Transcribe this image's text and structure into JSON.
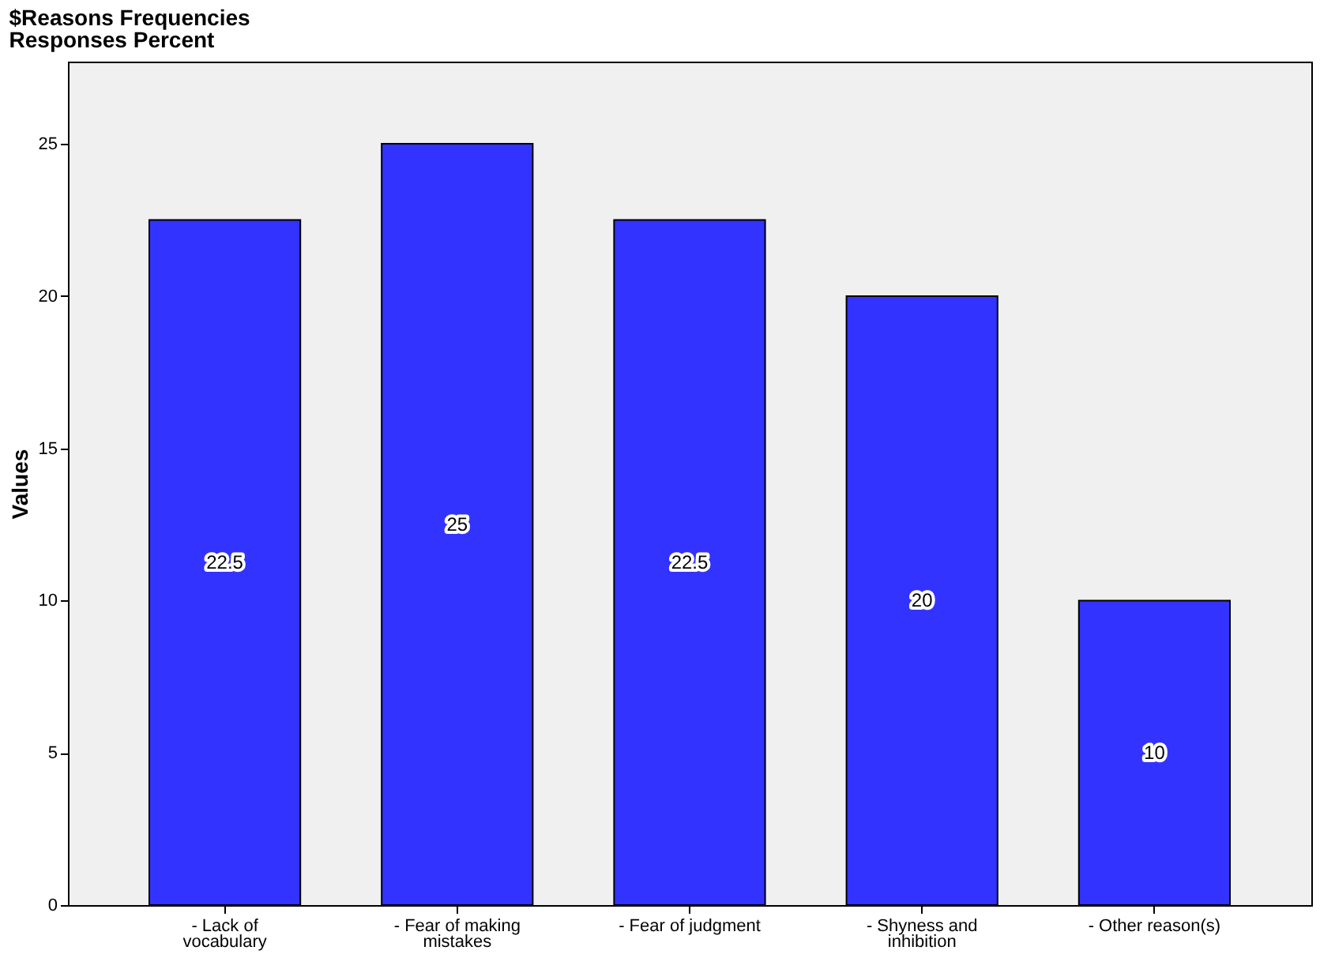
{
  "chart_data": {
    "type": "bar",
    "title": "$Reasons Frequencies",
    "subtitle": "Responses Percent",
    "ylabel": "Values",
    "categories": [
      "- Lack of vocabulary",
      "- Fear of making mistakes",
      "- Fear of judgment",
      "- Shyness and inhibition",
      "- Other reason(s)"
    ],
    "values": [
      22.5,
      25,
      22.5,
      20,
      10
    ],
    "color": "#3333ff",
    "data_labels": true,
    "ylim": [
      0,
      27.7
    ],
    "yticks": [
      0,
      5,
      10,
      15,
      20,
      25
    ],
    "grid": false
  }
}
